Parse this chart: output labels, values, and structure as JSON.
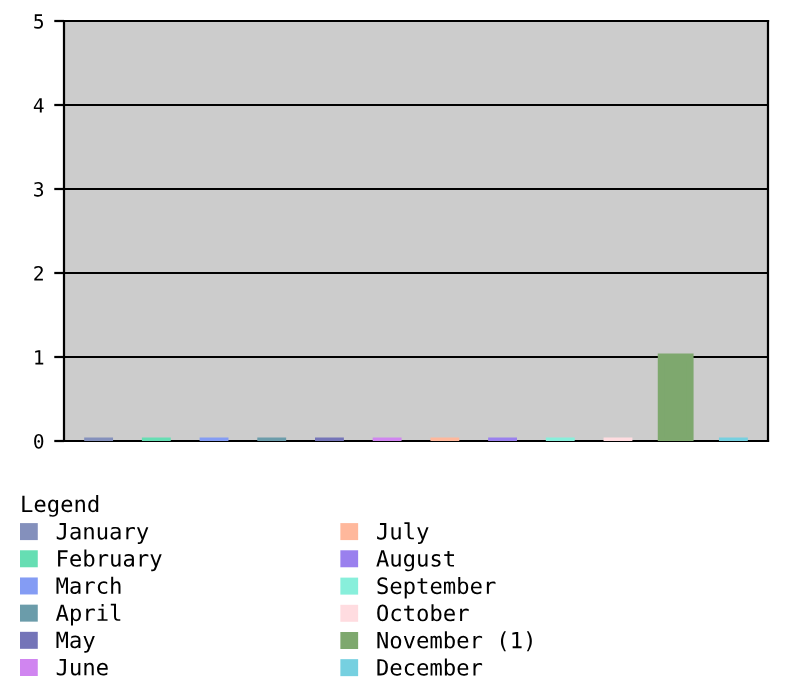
{
  "chart_data": {
    "type": "bar",
    "categories": [
      null,
      null,
      null,
      null,
      null,
      null,
      null,
      null,
      null,
      null,
      null,
      null
    ],
    "ylim": [
      0,
      5
    ],
    "yticks": [
      0,
      1,
      2,
      3,
      4,
      5
    ],
    "grid": "y",
    "legend": "bottom",
    "legend_title": "Legend",
    "tick_labels": "y",
    "series": [
      {
        "name": "January",
        "color": "#8490bc",
        "values": [
          0,
          null,
          null,
          null,
          null,
          null,
          null,
          null,
          null,
          null,
          null,
          null
        ]
      },
      {
        "name": "February",
        "color": "#66deb3",
        "values": [
          null,
          0,
          null,
          null,
          null,
          null,
          null,
          null,
          null,
          null,
          null,
          null
        ]
      },
      {
        "name": "March",
        "color": "#849cf4",
        "values": [
          null,
          null,
          0,
          null,
          null,
          null,
          null,
          null,
          null,
          null,
          null,
          null
        ]
      },
      {
        "name": "April",
        "color": "#6b9caa",
        "values": [
          null,
          null,
          null,
          0,
          null,
          null,
          null,
          null,
          null,
          null,
          null,
          null
        ]
      },
      {
        "name": "May",
        "color": "#7474b8",
        "values": [
          null,
          null,
          null,
          null,
          0,
          null,
          null,
          null,
          null,
          null,
          null,
          null
        ]
      },
      {
        "name": "June",
        "color": "#d085f0",
        "values": [
          null,
          null,
          null,
          null,
          null,
          0,
          null,
          null,
          null,
          null,
          null,
          null
        ]
      },
      {
        "name": "July",
        "color": "#ffb89c",
        "values": [
          null,
          null,
          null,
          null,
          null,
          null,
          0,
          null,
          null,
          null,
          null,
          null
        ]
      },
      {
        "name": "August",
        "color": "#9a80ee",
        "values": [
          null,
          null,
          null,
          null,
          null,
          null,
          null,
          0,
          null,
          null,
          null,
          null
        ]
      },
      {
        "name": "September",
        "color": "#88efdb",
        "values": [
          null,
          null,
          null,
          null,
          null,
          null,
          null,
          null,
          0,
          null,
          null,
          null
        ]
      },
      {
        "name": "October",
        "color": "#ffdce0",
        "values": [
          null,
          null,
          null,
          null,
          null,
          null,
          null,
          null,
          null,
          0,
          null,
          null
        ]
      },
      {
        "name": "November (1)",
        "color": "#7ea86e",
        "values": [
          null,
          null,
          null,
          null,
          null,
          null,
          null,
          null,
          null,
          null,
          1,
          null
        ]
      },
      {
        "name": "December",
        "color": "#76d0e0",
        "values": [
          null,
          null,
          null,
          null,
          null,
          null,
          null,
          null,
          null,
          null,
          null,
          0
        ]
      }
    ]
  }
}
